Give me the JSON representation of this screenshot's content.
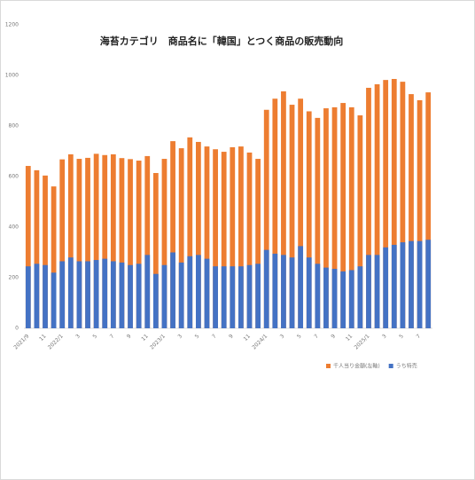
{
  "chart_data": {
    "type": "bar",
    "title": "海苔カテゴリ　商品名に「韓国」とつく商品の販売動向",
    "categories": [
      "2021/9",
      null,
      "11",
      null,
      "2022/1",
      null,
      "3",
      null,
      "5",
      null,
      "7",
      null,
      "9",
      null,
      "11",
      null,
      "2023/1",
      null,
      "3",
      null,
      "5",
      null,
      "7",
      null,
      "9",
      null,
      "11",
      null,
      "2024/1",
      null,
      "3",
      null,
      "5",
      null,
      "7",
      null,
      "9",
      null,
      "11",
      null,
      "2025/1",
      null,
      "3",
      null,
      "5",
      null,
      "7",
      null
    ],
    "series": [
      {
        "name": "千人当り金額(左軸)",
        "color": "#ed7d31",
        "values": [
          642,
          625,
          604,
          561,
          668,
          688,
          670,
          674,
          690,
          685,
          688,
          673,
          669,
          663,
          681,
          614,
          670,
          740,
          712,
          755,
          737,
          719,
          708,
          698,
          716,
          719,
          695,
          670,
          864,
          908,
          937,
          884,
          908,
          858,
          832,
          870,
          874,
          891,
          874,
          842,
          951,
          965,
          982,
          986,
          975,
          926,
          902,
          933
        ]
      },
      {
        "name": "うち特売",
        "color": "#4472c4",
        "values": [
          245,
          255,
          250,
          220,
          265,
          280,
          265,
          265,
          270,
          275,
          265,
          260,
          250,
          255,
          290,
          215,
          250,
          300,
          260,
          285,
          290,
          275,
          245,
          245,
          245,
          245,
          250,
          255,
          310,
          295,
          290,
          280,
          325,
          280,
          255,
          240,
          235,
          225,
          230,
          245,
          290,
          290,
          320,
          330,
          340,
          345,
          345,
          350
        ]
      }
    ],
    "ylim": [
      0,
      1200
    ],
    "yticks": [
      0,
      200,
      400,
      600,
      800,
      1000,
      1200
    ],
    "grid": false
  }
}
